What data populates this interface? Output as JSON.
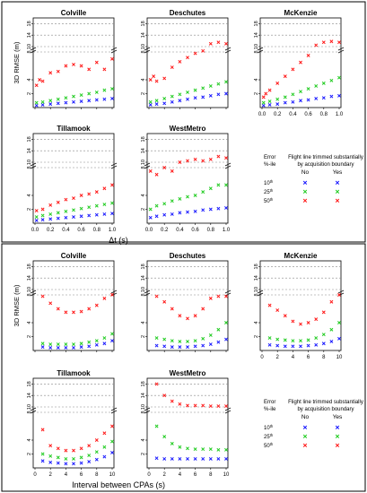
{
  "colors": {
    "p10": "#1a1aff",
    "p25": "#22cc22",
    "p50": "#ff1a1a"
  },
  "common": {
    "ylabel": "3D RMSE (m)",
    "yticks": [
      "2",
      "4",
      "8",
      "10",
      "14",
      "18"
    ],
    "legend_title": "Flight line trimmed substantially\nby acquisition boundary",
    "legend_err": "Error\n%-ile",
    "legend_no": "No",
    "legend_yes": "Yes",
    "legend_rows": [
      "10th",
      "25th",
      "50th"
    ]
  },
  "chart_data": [
    {
      "type": "scatter",
      "xlabel": "Δt (s)",
      "xlim": [
        0,
        1
      ],
      "xticks": [
        "0.0",
        "0.2",
        "0.4",
        "0.6",
        "0.8",
        "1.0"
      ],
      "ylim": [
        0,
        20
      ],
      "axis_break": [
        8,
        10
      ],
      "panels": [
        {
          "title": "Colville",
          "series": [
            {
              "pct": "10th",
              "x": [
                0.02,
                0.1,
                0.2,
                0.3,
                0.4,
                0.5,
                0.6,
                0.7,
                0.8,
                0.9,
                1.0
              ],
              "y": [
                0.3,
                0.4,
                0.5,
                0.6,
                0.7,
                0.8,
                0.9,
                1.0,
                1.1,
                1.2,
                1.3
              ]
            },
            {
              "pct": "25th",
              "x": [
                0.02,
                0.1,
                0.2,
                0.3,
                0.4,
                0.5,
                0.6,
                0.7,
                0.8,
                0.9,
                1.0
              ],
              "y": [
                0.7,
                0.8,
                1.0,
                1.2,
                1.4,
                1.6,
                1.8,
                2.0,
                2.2,
                2.5,
                2.7
              ]
            },
            {
              "pct": "50th",
              "x": [
                0.02,
                0.06,
                0.1,
                0.2,
                0.3,
                0.4,
                0.5,
                0.6,
                0.7,
                0.8,
                0.9,
                1.0
              ],
              "y": [
                3.2,
                4.0,
                3.8,
                5.0,
                5.2,
                6.0,
                6.2,
                6.0,
                5.5,
                6.5,
                5.5,
                7.0
              ]
            }
          ]
        },
        {
          "title": "Deschutes",
          "series": [
            {
              "pct": "10th",
              "x": [
                0.02,
                0.1,
                0.2,
                0.3,
                0.4,
                0.5,
                0.6,
                0.7,
                0.8,
                0.9,
                1.0
              ],
              "y": [
                0.4,
                0.5,
                0.6,
                0.8,
                1.0,
                1.2,
                1.4,
                1.5,
                1.7,
                1.9,
                2.0
              ]
            },
            {
              "pct": "25th",
              "x": [
                0.02,
                0.1,
                0.2,
                0.3,
                0.4,
                0.5,
                0.6,
                0.7,
                0.8,
                0.9,
                1.0
              ],
              "y": [
                0.8,
                1.0,
                1.3,
                1.6,
                1.9,
                2.2,
                2.5,
                2.8,
                3.1,
                3.4,
                3.7
              ]
            },
            {
              "pct": "50th",
              "x": [
                0.02,
                0.06,
                0.1,
                0.2,
                0.3,
                0.4,
                0.5,
                0.6,
                0.7,
                0.8,
                0.9,
                1.0
              ],
              "y": [
                4.0,
                4.5,
                3.8,
                4.2,
                5.8,
                6.6,
                7.2,
                7.8,
                8.5,
                11.0,
                11.5,
                11.0
              ]
            }
          ]
        },
        {
          "title": "McKenzie",
          "series": [
            {
              "pct": "10th",
              "x": [
                0.02,
                0.1,
                0.2,
                0.3,
                0.4,
                0.5,
                0.6,
                0.7,
                0.8,
                0.9,
                1.0
              ],
              "y": [
                0.3,
                0.4,
                0.5,
                0.7,
                0.8,
                1.0,
                1.1,
                1.3,
                1.4,
                1.6,
                1.7
              ]
            },
            {
              "pct": "25th",
              "x": [
                0.02,
                0.1,
                0.2,
                0.3,
                0.4,
                0.5,
                0.6,
                0.7,
                0.8,
                0.9,
                1.0
              ],
              "y": [
                0.7,
                0.9,
                1.2,
                1.5,
                1.9,
                2.3,
                2.7,
                3.1,
                3.5,
                3.9,
                4.3
              ]
            },
            {
              "pct": "50th",
              "x": [
                0.02,
                0.05,
                0.1,
                0.2,
                0.3,
                0.4,
                0.5,
                0.6,
                0.7,
                0.8,
                0.9,
                1.0
              ],
              "y": [
                1.5,
                2.0,
                2.5,
                3.5,
                4.5,
                5.5,
                6.5,
                7.5,
                10.5,
                11.5,
                11.8,
                11.5
              ]
            }
          ]
        },
        {
          "title": "Tillamook",
          "series": [
            {
              "pct": "10th",
              "x": [
                0.02,
                0.1,
                0.2,
                0.3,
                0.4,
                0.5,
                0.6,
                0.7,
                0.8,
                0.9,
                1.0
              ],
              "y": [
                0.4,
                0.5,
                0.6,
                0.7,
                0.8,
                0.9,
                1.0,
                1.1,
                1.2,
                1.3,
                1.4
              ]
            },
            {
              "pct": "25th",
              "x": [
                0.02,
                0.1,
                0.2,
                0.3,
                0.4,
                0.5,
                0.6,
                0.7,
                0.8,
                0.9,
                1.0
              ],
              "y": [
                0.9,
                1.1,
                1.3,
                1.5,
                1.7,
                1.9,
                2.1,
                2.3,
                2.5,
                2.7,
                2.9
              ]
            },
            {
              "pct": "50th",
              "x": [
                0.02,
                0.1,
                0.2,
                0.3,
                0.4,
                0.5,
                0.6,
                0.7,
                0.8,
                0.9,
                1.0
              ],
              "y": [
                1.8,
                2.0,
                2.6,
                3.0,
                3.4,
                3.6,
                4.0,
                4.2,
                4.5,
                5.0,
                5.5
              ]
            }
          ]
        },
        {
          "title": "WestMetro",
          "series": [
            {
              "pct": "10th",
              "x": [
                0.02,
                0.1,
                0.2,
                0.3,
                0.4,
                0.5,
                0.6,
                0.7,
                0.8,
                0.9,
                1.0
              ],
              "y": [
                0.8,
                1.0,
                1.2,
                1.3,
                1.5,
                1.6,
                1.7,
                1.9,
                2.0,
                2.1,
                2.2
              ]
            },
            {
              "pct": "25th",
              "x": [
                0.02,
                0.1,
                0.2,
                0.3,
                0.4,
                0.5,
                0.6,
                0.7,
                0.8,
                0.9,
                1.0
              ],
              "y": [
                2.0,
                2.5,
                2.8,
                3.2,
                3.5,
                3.8,
                4.0,
                4.5,
                5.0,
                5.5,
                5.5
              ]
            },
            {
              "pct": "50th",
              "x": [
                0.02,
                0.1,
                0.2,
                0.3,
                0.4,
                0.5,
                0.6,
                0.7,
                0.8,
                0.9,
                1.0
              ],
              "y": [
                7.5,
                7.0,
                8.0,
                7.5,
                10.0,
                10.5,
                11.0,
                10.5,
                11.0,
                12.0,
                11.5
              ]
            }
          ]
        }
      ]
    },
    {
      "type": "scatter",
      "xlabel": "Interval between CPAs (s)",
      "xlim": [
        0,
        10
      ],
      "xticks": [
        "0",
        "2",
        "4",
        "6",
        "8",
        "10"
      ],
      "ylim": [
        0,
        20
      ],
      "axis_break": [
        8,
        10
      ],
      "panels": [
        {
          "title": "Colville",
          "series": [
            {
              "pct": "10th",
              "x": [
                1,
                2,
                3,
                4,
                5,
                6,
                7,
                8,
                9,
                10
              ],
              "y": [
                0.5,
                0.4,
                0.4,
                0.4,
                0.4,
                0.5,
                0.6,
                0.8,
                1.0,
                1.4
              ]
            },
            {
              "pct": "25th",
              "x": [
                1,
                2,
                3,
                4,
                5,
                6,
                7,
                8,
                9,
                10
              ],
              "y": [
                1.0,
                0.9,
                0.9,
                0.9,
                0.9,
                1.0,
                1.2,
                1.4,
                1.8,
                2.4
              ]
            },
            {
              "pct": "50th",
              "x": [
                1,
                2,
                3,
                4,
                5,
                6,
                7,
                8,
                9,
                10
              ],
              "y": [
                7.8,
                6.8,
                6.0,
                5.5,
                5.5,
                5.6,
                6.0,
                6.5,
                7.5,
                8.2
              ]
            }
          ]
        },
        {
          "title": "Deschutes",
          "series": [
            {
              "pct": "10th",
              "x": [
                1,
                2,
                3,
                4,
                5,
                6,
                7,
                8,
                9,
                10
              ],
              "y": [
                0.7,
                0.6,
                0.5,
                0.5,
                0.5,
                0.6,
                0.7,
                0.9,
                1.2,
                1.6
              ]
            },
            {
              "pct": "25th",
              "x": [
                1,
                2,
                3,
                4,
                5,
                6,
                7,
                8,
                9,
                10
              ],
              "y": [
                1.8,
                1.6,
                1.4,
                1.3,
                1.3,
                1.4,
                1.7,
                2.2,
                3.0,
                4.0
              ]
            },
            {
              "pct": "50th",
              "x": [
                1,
                2,
                3,
                4,
                5,
                6,
                7,
                8,
                9,
                10
              ],
              "y": [
                7.8,
                7.0,
                6.0,
                5.0,
                4.6,
                5.0,
                6.0,
                7.5,
                7.8,
                7.8
              ]
            }
          ]
        },
        {
          "title": "McKenzie",
          "series": [
            {
              "pct": "10th",
              "x": [
                1,
                2,
                3,
                4,
                5,
                6,
                7,
                8,
                9,
                10
              ],
              "y": [
                0.8,
                0.7,
                0.6,
                0.6,
                0.6,
                0.7,
                0.8,
                1.0,
                1.3,
                1.7
              ]
            },
            {
              "pct": "25th",
              "x": [
                1,
                2,
                3,
                4,
                5,
                6,
                7,
                8,
                9,
                10
              ],
              "y": [
                1.8,
                1.6,
                1.5,
                1.4,
                1.4,
                1.5,
                1.8,
                2.3,
                3.0,
                4.0
              ]
            },
            {
              "pct": "50th",
              "x": [
                1,
                2,
                3,
                4,
                5,
                6,
                7,
                8,
                9,
                10
              ],
              "y": [
                6.5,
                5.8,
                5.0,
                4.2,
                3.8,
                4.0,
                4.5,
                5.5,
                7.0,
                8.0
              ]
            }
          ]
        },
        {
          "title": "Tillamook",
          "series": [
            {
              "pct": "10th",
              "x": [
                1,
                2,
                3,
                4,
                5,
                6,
                7,
                8,
                9,
                10
              ],
              "y": [
                1.0,
                0.8,
                0.7,
                0.6,
                0.6,
                0.7,
                0.9,
                1.2,
                1.6,
                2.2
              ]
            },
            {
              "pct": "25th",
              "x": [
                1,
                2,
                3,
                4,
                5,
                6,
                7,
                8,
                9,
                10
              ],
              "y": [
                2.0,
                1.7,
                1.5,
                1.3,
                1.3,
                1.5,
                1.8,
                2.3,
                3.0,
                3.8
              ]
            },
            {
              "pct": "50th",
              "x": [
                1,
                2,
                3,
                4,
                5,
                6,
                7,
                8,
                9,
                10
              ],
              "y": [
                5.5,
                3.2,
                2.8,
                2.5,
                2.5,
                2.8,
                3.2,
                4.0,
                5.0,
                6.0
              ]
            }
          ]
        },
        {
          "title": "WestMetro",
          "series": [
            {
              "pct": "10th",
              "x": [
                1,
                2,
                3,
                4,
                5,
                6,
                7,
                8,
                9,
                10
              ],
              "y": [
                1.4,
                1.3,
                1.3,
                1.3,
                1.3,
                1.3,
                1.3,
                1.3,
                1.3,
                1.3
              ]
            },
            {
              "pct": "25th",
              "x": [
                1,
                2,
                3,
                4,
                5,
                6,
                7,
                8,
                9,
                10
              ],
              "y": [
                6.0,
                4.5,
                3.5,
                3.0,
                2.8,
                2.7,
                2.7,
                2.7,
                2.6,
                2.6
              ]
            },
            {
              "pct": "50th",
              "x": [
                1,
                2,
                3,
                4,
                5,
                6,
                7,
                8,
                9,
                10
              ],
              "y": [
                18.0,
                14.0,
                12.0,
                11.0,
                10.5,
                10.5,
                10.5,
                10.3,
                10.3,
                10.3
              ]
            }
          ]
        }
      ]
    }
  ]
}
